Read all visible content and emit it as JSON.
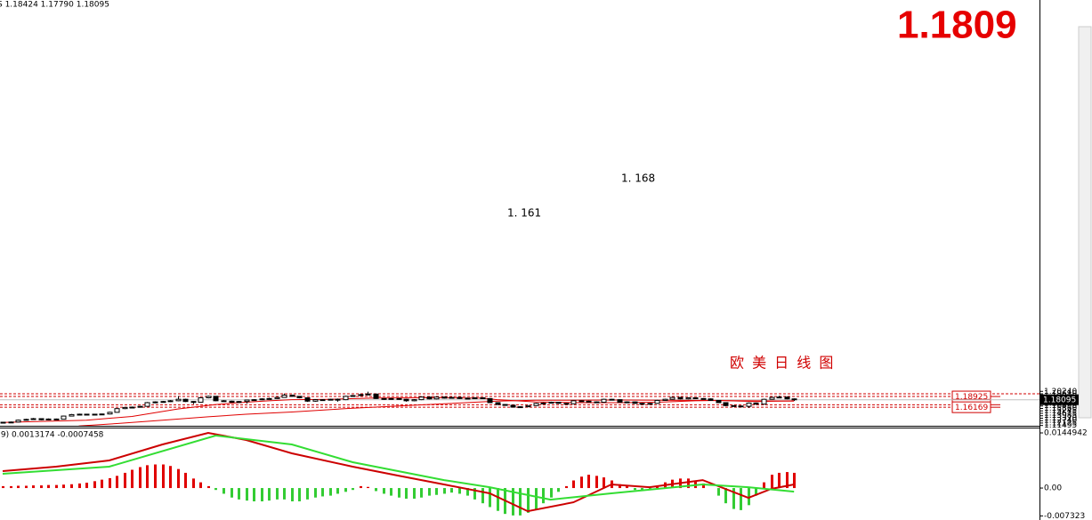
{
  "chart_data": [
    {
      "type": "candlestick",
      "header": "S 1.18424 1.17790 1.18095",
      "big_label": "1.1809",
      "annotations": [
        "1. 161",
        "1. 168",
        "欧 美 日 线 图"
      ],
      "ylim": [
        1.1142,
        2.2051
      ],
      "yticks": [
        {
          "value": 1.2024,
          "label": "1.20240"
        },
        {
          "value": 1.1961,
          "label": "1.19610"
        },
        {
          "value": 1.1898,
          "label": "1.18980"
        },
        1.18365,
        1.17735,
        {
          "value": 1.1712,
          "label": "1.17120"
        },
        {
          "value": 1.1649,
          "label": "1.16490"
        },
        {
          "value": 1.1586,
          "label": "1.15860"
        },
        1.15245,
        1.14615,
        1.13985,
        {
          "value": 1.1337,
          "label": "1.13370"
        },
        {
          "value": 1.1274,
          "label": "1.12740"
        },
        1.12125,
        1.11495
      ],
      "up_color": "#ffffff",
      "down_color": "#000000",
      "candles": [
        [
          1.1225,
          1.1245,
          1.1218,
          1.1233
        ],
        [
          1.1233,
          1.125,
          1.1225,
          1.1238
        ],
        [
          1.1238,
          1.13,
          1.123,
          1.1286
        ],
        [
          1.1286,
          1.132,
          1.1275,
          1.1305
        ],
        [
          1.1305,
          1.134,
          1.1295,
          1.1324
        ],
        [
          1.1324,
          1.1335,
          1.1285,
          1.1296
        ],
        [
          1.1296,
          1.133,
          1.1285,
          1.1315
        ],
        [
          1.1315,
          1.1328,
          1.13,
          1.131
        ],
        [
          1.131,
          1.1402,
          1.1305,
          1.1391
        ],
        [
          1.1391,
          1.1445,
          1.138,
          1.1429
        ],
        [
          1.1429,
          1.1452,
          1.1418,
          1.1439
        ],
        [
          1.1439,
          1.145,
          1.142,
          1.1429
        ],
        [
          1.1429,
          1.145,
          1.142,
          1.1439
        ],
        [
          1.1439,
          1.1452,
          1.1425,
          1.1444
        ],
        [
          1.1444,
          1.15,
          1.1435,
          1.1487
        ],
        [
          1.1487,
          1.1595,
          1.148,
          1.1582
        ],
        [
          1.1582,
          1.1625,
          1.157,
          1.1611
        ],
        [
          1.1611,
          1.1635,
          1.16,
          1.162
        ],
        [
          1.162,
          1.165,
          1.161,
          1.164
        ],
        [
          1.164,
          1.175,
          1.1632,
          1.1735
        ],
        [
          1.1735,
          1.1768,
          1.172,
          1.1754
        ],
        [
          1.1754,
          1.178,
          1.1742,
          1.1764
        ],
        [
          1.1764,
          1.18,
          1.175,
          1.1783
        ],
        [
          1.1783,
          1.1905,
          1.177,
          1.1821
        ],
        [
          1.1821,
          1.1835,
          1.175,
          1.1764
        ],
        [
          1.1764,
          1.1775,
          1.17,
          1.1745
        ],
        [
          1.1745,
          1.1875,
          1.1735,
          1.1859
        ],
        [
          1.1859,
          1.191,
          1.1845,
          1.1897
        ],
        [
          1.1897,
          1.1905,
          1.177,
          1.1783
        ],
        [
          1.1783,
          1.18,
          1.1755,
          1.1773
        ],
        [
          1.1773,
          1.1785,
          1.173,
          1.1745
        ],
        [
          1.1745,
          1.178,
          1.1735,
          1.1764
        ],
        [
          1.1764,
          1.1815,
          1.171,
          1.1802
        ],
        [
          1.1802,
          1.1825,
          1.179,
          1.1811
        ],
        [
          1.1811,
          1.1845,
          1.18,
          1.1831
        ],
        [
          1.1831,
          1.186,
          1.182,
          1.184
        ],
        [
          1.184,
          1.1885,
          1.183,
          1.1869
        ],
        [
          1.1869,
          1.1968,
          1.186,
          1.1926
        ],
        [
          1.1926,
          1.194,
          1.1885,
          1.1897
        ],
        [
          1.1897,
          1.1905,
          1.1845,
          1.1859
        ],
        [
          1.1859,
          1.1865,
          1.1755,
          1.1773
        ],
        [
          1.1773,
          1.1825,
          1.176,
          1.1811
        ],
        [
          1.1811,
          1.1825,
          1.179,
          1.1802
        ],
        [
          1.1802,
          1.1835,
          1.179,
          1.1821
        ],
        [
          1.1821,
          1.184,
          1.176,
          1.1811
        ],
        [
          1.1811,
          1.191,
          1.18,
          1.1897
        ],
        [
          1.1897,
          1.193,
          1.1885,
          1.1916
        ],
        [
          1.1916,
          1.1962,
          1.19,
          1.194
        ],
        [
          1.194,
          1.2016,
          1.193,
          1.1955
        ],
        [
          1.1955,
          1.1962,
          1.183,
          1.184
        ],
        [
          1.184,
          1.185,
          1.1805,
          1.1821
        ],
        [
          1.1821,
          1.1855,
          1.181,
          1.184
        ],
        [
          1.184,
          1.1852,
          1.1808,
          1.1821
        ],
        [
          1.1821,
          1.183,
          1.176,
          1.1783
        ],
        [
          1.1783,
          1.1825,
          1.177,
          1.1811
        ],
        [
          1.1811,
          1.19,
          1.18,
          1.1878
        ],
        [
          1.1878,
          1.189,
          1.182,
          1.1831
        ],
        [
          1.1831,
          1.1895,
          1.182,
          1.1878
        ],
        [
          1.1878,
          1.189,
          1.1838,
          1.185
        ],
        [
          1.185,
          1.1882,
          1.184,
          1.1869
        ],
        [
          1.1869,
          1.188,
          1.1828,
          1.184
        ],
        [
          1.184,
          1.1862,
          1.183,
          1.185
        ],
        [
          1.185,
          1.1872,
          1.184,
          1.1859
        ],
        [
          1.1859,
          1.1868,
          1.1828,
          1.184
        ],
        [
          1.184,
          1.185,
          1.1725,
          1.1735
        ],
        [
          1.1735,
          1.1745,
          1.1675,
          1.1687
        ],
        [
          1.1687,
          1.1698,
          1.1655,
          1.1668
        ],
        [
          1.1668,
          1.1675,
          1.161,
          1.162
        ],
        [
          1.162,
          1.164,
          1.161,
          1.163
        ],
        [
          1.163,
          1.167,
          1.1618,
          1.1659
        ],
        [
          1.1659,
          1.173,
          1.1648,
          1.1716
        ],
        [
          1.1716,
          1.174,
          1.1705,
          1.1725
        ],
        [
          1.1725,
          1.176,
          1.1712,
          1.1745
        ],
        [
          1.1745,
          1.1752,
          1.1705,
          1.1716
        ],
        [
          1.1716,
          1.1725,
          1.1695,
          1.1706
        ],
        [
          1.1706,
          1.1795,
          1.1698,
          1.1783
        ],
        [
          1.1783,
          1.1795,
          1.1762,
          1.1773
        ],
        [
          1.1773,
          1.1785,
          1.1742,
          1.1754
        ],
        [
          1.1754,
          1.1765,
          1.1735,
          1.1745
        ],
        [
          1.1745,
          1.1835,
          1.1738,
          1.1821
        ],
        [
          1.1821,
          1.1832,
          1.18,
          1.1811
        ],
        [
          1.1811,
          1.182,
          1.1735,
          1.1745
        ],
        [
          1.1745,
          1.1768,
          1.1735,
          1.1754
        ],
        [
          1.1754,
          1.1762,
          1.1705,
          1.1716
        ],
        [
          1.1716,
          1.173,
          1.168,
          1.1706
        ],
        [
          1.1706,
          1.1728,
          1.1695,
          1.1716
        ],
        [
          1.1716,
          1.1805,
          1.1705,
          1.1792
        ],
        [
          1.1792,
          1.1835,
          1.178,
          1.1821
        ],
        [
          1.1821,
          1.1885,
          1.181,
          1.1869
        ],
        [
          1.1869,
          1.188,
          1.182,
          1.1831
        ],
        [
          1.1831,
          1.1872,
          1.182,
          1.1859
        ],
        [
          1.1859,
          1.1868,
          1.1828,
          1.184
        ],
        [
          1.184,
          1.185,
          1.1818,
          1.1831
        ],
        [
          1.1831,
          1.1842,
          1.178,
          1.1792
        ],
        [
          1.1792,
          1.18,
          1.1722,
          1.1735
        ],
        [
          1.1735,
          1.1745,
          1.1645,
          1.1659
        ],
        [
          1.1659,
          1.1668,
          1.1638,
          1.1649
        ],
        [
          1.1649,
          1.166,
          1.1625,
          1.164
        ],
        [
          1.164,
          1.174,
          1.1601,
          1.1725
        ],
        [
          1.1725,
          1.1738,
          1.168,
          1.1697
        ],
        [
          1.1697,
          1.1835,
          1.1685,
          1.1821
        ],
        [
          1.1821,
          1.1885,
          1.181,
          1.1869
        ],
        [
          1.1869,
          1.191,
          1.1858,
          1.1878
        ],
        [
          1.1878,
          1.189,
          1.182,
          1.1831
        ],
        [
          1.1831,
          1.18424,
          1.1779,
          1.18095
        ]
      ],
      "moving_averages": [
        {
          "color": "#e00000",
          "x": [
            0,
            11,
            17,
            23,
            28,
            31,
            35,
            38,
            43,
            49,
            56,
            63,
            65,
            70,
            76,
            81,
            86,
            91,
            94,
            99,
            104
          ],
          "values": [
            1.1229,
            1.1286,
            1.1382,
            1.1573,
            1.1687,
            1.1735,
            1.1783,
            1.1811,
            1.1821,
            1.1853,
            1.1859,
            1.185,
            1.1811,
            1.1754,
            1.1735,
            1.1735,
            1.1745,
            1.1783,
            1.1792,
            1.1764,
            1.1783
          ]
        },
        {
          "color": "#e00000",
          "x": [
            10,
            15,
            21,
            27,
            32,
            38,
            46,
            52,
            58,
            65,
            70,
            81,
            93,
            104
          ],
          "values": [
            1.1135,
            1.12,
            1.1286,
            1.1372,
            1.1439,
            1.1496,
            1.1592,
            1.1649,
            1.1706,
            1.1773,
            1.1796,
            1.1802,
            1.1792,
            1.1773
          ]
        }
      ],
      "dashed_levels": [
        1.1961
      ],
      "labeled_levels": [
        1.18925,
        1.16811,
        1.16169
      ],
      "level_color": "#d00000",
      "last_price": 1.18095,
      "grid": false
    },
    {
      "type": "macd",
      "header": ",9) 0.0013174 -0.0007458",
      "ylim": [
        -0.0084,
        0.0159
      ],
      "yticks": [
        0.0144942,
        {
          "value": 0,
          "label": "0.00"
        },
        -0.007323
      ],
      "up_color": "#e00000",
      "down_color": "#33cc33",
      "histogram": [
        0.0005,
        0.0005,
        0.0006,
        0.0006,
        0.0007,
        0.0007,
        0.0008,
        0.0008,
        0.0009,
        0.001,
        0.0012,
        0.0014,
        0.0018,
        0.0022,
        0.0026,
        0.0032,
        0.004,
        0.0048,
        0.0055,
        0.006,
        0.0062,
        0.0062,
        0.0058,
        0.005,
        0.004,
        0.0025,
        0.0015,
        0.0005,
        -0.0005,
        -0.0015,
        -0.0025,
        -0.003,
        -0.0033,
        -0.0035,
        -0.0035,
        -0.0033,
        -0.003,
        -0.003,
        -0.0035,
        -0.0035,
        -0.003,
        -0.0025,
        -0.0022,
        -0.002,
        -0.0015,
        -0.001,
        -0.0005,
        0.0005,
        0.0003,
        -0.0008,
        -0.0015,
        -0.002,
        -0.0025,
        -0.0028,
        -0.0028,
        -0.0025,
        -0.002,
        -0.0018,
        -0.0015,
        -0.0012,
        -0.0015,
        -0.002,
        -0.003,
        -0.004,
        -0.005,
        -0.006,
        -0.0068,
        -0.0072,
        -0.0072,
        -0.0065,
        -0.0055,
        -0.004,
        -0.0025,
        -0.001,
        0.0005,
        0.002,
        0.003,
        0.0035,
        0.0032,
        0.0028,
        0.002,
        0.001,
        0.0005,
        -0.0005,
        -0.0008,
        -0.0005,
        0.0005,
        0.0015,
        0.0022,
        0.0025,
        0.0025,
        0.002,
        0.0012,
        0,
        -0.002,
        -0.004,
        -0.0055,
        -0.0058,
        -0.0045,
        -0.002,
        0.0015,
        0.0035,
        0.004,
        0.0042,
        0.004
      ],
      "lines": [
        {
          "color": "#cc0000",
          "x": [
            0,
            7,
            14,
            21,
            27,
            32,
            38,
            46,
            52,
            58,
            64,
            69,
            75,
            80,
            85,
            92,
            98,
            101,
            104
          ],
          "values": [
            0.00444,
            0.00561,
            0.00725,
            0.01145,
            0.01449,
            0.01262,
            0.00912,
            0.00561,
            0.00327,
            0.00094,
            -0.0014,
            -0.00608,
            -0.00374,
            0.00094,
            0.00023,
            0.0021,
            -0.00257,
            -0.00023,
            0.00094
          ]
        },
        {
          "color": "#33dd33",
          "x": [
            0,
            14,
            28,
            38,
            46,
            58,
            64,
            72,
            80,
            92,
            98,
            104
          ],
          "values": [
            0.00374,
            0.00561,
            0.01379,
            0.01145,
            0.00678,
            0.0021,
            0.00023,
            -0.00304,
            -0.0014,
            0.00094,
            0.00023,
            -0.00094
          ]
        }
      ]
    }
  ]
}
